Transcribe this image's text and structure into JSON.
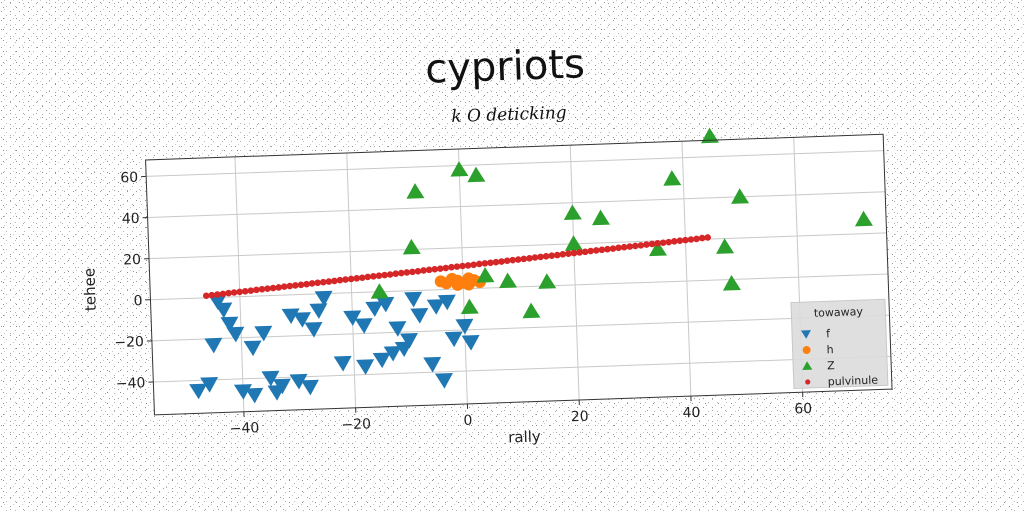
{
  "chart_data": {
    "type": "scatter",
    "title": "cypriots",
    "subtitle": "k O deticking",
    "xlabel": "rally",
    "ylabel": "tehee",
    "xlim": [
      -56,
      76
    ],
    "ylim": [
      -56,
      68
    ],
    "xticks": [
      -40,
      -20,
      0,
      20,
      40,
      60
    ],
    "yticks": [
      -40,
      -20,
      0,
      20,
      40,
      60
    ],
    "xtick_labels": [
      "−40",
      "−20",
      "0",
      "20",
      "40",
      "60"
    ],
    "ytick_labels": [
      "−40",
      "−20",
      "0",
      "20",
      "40",
      "60"
    ],
    "grid": true,
    "legend": {
      "title": "towaway",
      "placement": "bottom-right"
    },
    "series": [
      {
        "name": "f",
        "marker": "triangle-down",
        "color": "#1f77b4",
        "points": [
          [
            -48,
            -45
          ],
          [
            -46,
            -42
          ],
          [
            -44,
            -2
          ],
          [
            -43,
            -6
          ],
          [
            -42,
            -13
          ],
          [
            -41,
            -18
          ],
          [
            -45,
            -23
          ],
          [
            -38,
            -25
          ],
          [
            -36,
            -18
          ],
          [
            -40,
            -46
          ],
          [
            -38,
            -48
          ],
          [
            -35,
            -40
          ],
          [
            -34,
            -47
          ],
          [
            -33,
            -44
          ],
          [
            -31,
            -10
          ],
          [
            -29,
            -12
          ],
          [
            -27,
            -17
          ],
          [
            -30,
            -42
          ],
          [
            -28,
            -45
          ],
          [
            -26,
            -8
          ],
          [
            -25,
            -2
          ],
          [
            -20,
            -12
          ],
          [
            -18,
            -16
          ],
          [
            -16,
            -8
          ],
          [
            -14,
            -6
          ],
          [
            -22,
            -34
          ],
          [
            -18,
            -36
          ],
          [
            -15,
            -33
          ],
          [
            -13,
            -30
          ],
          [
            -11,
            -28
          ],
          [
            -10,
            -24
          ],
          [
            -12,
            -18
          ],
          [
            -9,
            -4
          ],
          [
            -8,
            -12
          ],
          [
            -6,
            -36
          ],
          [
            -4,
            -44
          ],
          [
            -5,
            -8
          ],
          [
            -3,
            -6
          ],
          [
            -2,
            -24
          ],
          [
            1,
            -26
          ],
          [
            0,
            -18
          ]
        ]
      },
      {
        "name": "h",
        "marker": "circle",
        "color": "#ff7f0e",
        "points": [
          [
            -4,
            4
          ],
          [
            -3,
            3
          ],
          [
            -2,
            5
          ],
          [
            -1,
            4
          ],
          [
            0,
            3
          ],
          [
            1,
            5
          ],
          [
            2,
            4
          ],
          [
            3,
            3
          ],
          [
            -1,
            2
          ],
          [
            1,
            2
          ]
        ]
      },
      {
        "name": "Z",
        "marker": "triangle-up",
        "color": "#2ca02c",
        "points": [
          [
            -8,
            48
          ],
          [
            0,
            58
          ],
          [
            3,
            55
          ],
          [
            -9,
            21
          ],
          [
            -15,
            0
          ],
          [
            1,
            -9
          ],
          [
            4,
            6
          ],
          [
            8,
            3
          ],
          [
            15,
            2
          ],
          [
            12,
            -12
          ],
          [
            20,
            35
          ],
          [
            20,
            20
          ],
          [
            25,
            32
          ],
          [
            35,
            16
          ],
          [
            38,
            50
          ],
          [
            45,
            70
          ],
          [
            47,
            16
          ],
          [
            48,
            -2
          ],
          [
            50,
            40
          ],
          [
            72,
            27
          ]
        ]
      },
      {
        "name": "pulvinule",
        "marker": "point",
        "color": "#d62728",
        "points": [
          [
            -46,
            1
          ],
          [
            -45,
            1.2
          ],
          [
            -44,
            1.4
          ],
          [
            -43,
            1.6
          ],
          [
            -42,
            1.9
          ],
          [
            -41,
            2.1
          ],
          [
            -40,
            2.3
          ],
          [
            -39,
            2.5
          ],
          [
            -38,
            2.7
          ],
          [
            -37,
            3
          ],
          [
            -36,
            3.2
          ],
          [
            -35,
            3.4
          ],
          [
            -34,
            3.6
          ],
          [
            -33,
            3.8
          ],
          [
            -32,
            4.1
          ],
          [
            -31,
            4.3
          ],
          [
            -30,
            4.5
          ],
          [
            -29,
            4.7
          ],
          [
            -28,
            4.9
          ],
          [
            -27,
            5.2
          ],
          [
            -26,
            5.4
          ],
          [
            -25,
            5.6
          ],
          [
            -24,
            5.8
          ],
          [
            -23,
            6
          ],
          [
            -22,
            6.3
          ],
          [
            -21,
            6.5
          ],
          [
            -20,
            6.7
          ],
          [
            -19,
            6.9
          ],
          [
            -18,
            7.1
          ],
          [
            -17,
            7.4
          ],
          [
            -16,
            7.6
          ],
          [
            -15,
            7.8
          ],
          [
            -14,
            8
          ],
          [
            -13,
            8.2
          ],
          [
            -12,
            8.5
          ],
          [
            -11,
            8.7
          ],
          [
            -10,
            8.9
          ],
          [
            -9,
            9.1
          ],
          [
            -8,
            9.3
          ],
          [
            -7,
            9.6
          ],
          [
            -6,
            9.8
          ],
          [
            -5,
            10
          ],
          [
            -4,
            10.2
          ],
          [
            -3,
            10.4
          ],
          [
            -2,
            10.7
          ],
          [
            -1,
            10.9
          ],
          [
            0,
            11.1
          ],
          [
            1,
            11.3
          ],
          [
            2,
            11.5
          ],
          [
            3,
            11.8
          ],
          [
            4,
            12
          ],
          [
            5,
            12.2
          ],
          [
            6,
            12.4
          ],
          [
            7,
            12.6
          ],
          [
            8,
            12.9
          ],
          [
            9,
            13.1
          ],
          [
            10,
            13.3
          ],
          [
            11,
            13.5
          ],
          [
            12,
            13.7
          ],
          [
            13,
            14
          ],
          [
            14,
            14.2
          ],
          [
            15,
            14.4
          ],
          [
            16,
            14.6
          ],
          [
            17,
            14.8
          ],
          [
            18,
            15.1
          ],
          [
            19,
            15.3
          ],
          [
            20,
            15.5
          ],
          [
            21,
            15.7
          ],
          [
            22,
            15.9
          ],
          [
            23,
            16.2
          ],
          [
            24,
            16.4
          ],
          [
            25,
            16.6
          ],
          [
            26,
            16.8
          ],
          [
            27,
            17
          ],
          [
            28,
            17.3
          ],
          [
            29,
            17.5
          ],
          [
            30,
            17.7
          ],
          [
            31,
            17.9
          ],
          [
            32,
            18.1
          ],
          [
            33,
            18.4
          ],
          [
            34,
            18.6
          ],
          [
            35,
            18.8
          ],
          [
            36,
            19
          ],
          [
            37,
            19.2
          ],
          [
            38,
            19.5
          ],
          [
            39,
            19.7
          ],
          [
            40,
            19.9
          ],
          [
            41,
            20.1
          ],
          [
            42,
            20.3
          ],
          [
            43,
            20.6
          ],
          [
            44,
            20.8
          ]
        ]
      }
    ]
  }
}
